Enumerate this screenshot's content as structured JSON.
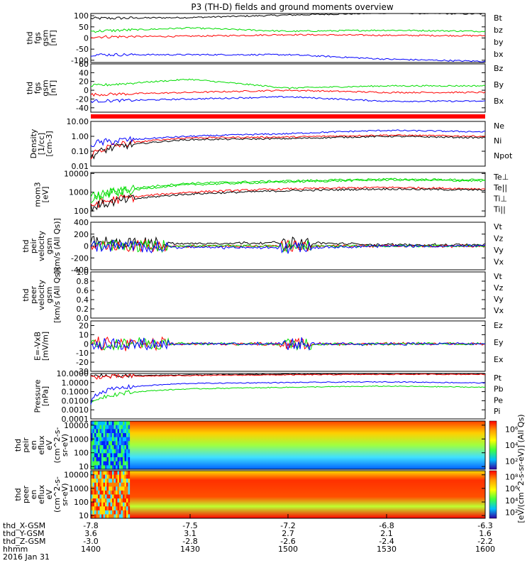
{
  "title": "P3 (TH-D) fields and ground moments overview",
  "colors": {
    "black": "#000000",
    "red": "#ff0000",
    "green": "#00dd00",
    "blue": "#0000ff"
  },
  "panels": [
    {
      "id": "fgs",
      "ylabel": [
        "thd",
        "fgs",
        "gsm",
        "[nT]"
      ],
      "ticks": [
        {
          "v": 100,
          "label": "100"
        },
        {
          "v": 50,
          "label": "50"
        },
        {
          "v": 0,
          "label": "0"
        },
        {
          "v": -50,
          "label": "-50"
        },
        {
          "v": -100,
          "label": "-100"
        }
      ],
      "ylim": [
        -110,
        110
      ],
      "log": false,
      "legend": [
        {
          "label": "Bt",
          "color": "black"
        },
        {
          "label": "bz",
          "color": "red"
        },
        {
          "label": "by",
          "color": "green"
        },
        {
          "label": "bx",
          "color": "blue"
        }
      ]
    },
    {
      "id": "fgs_dsl",
      "ylabel": [
        "thd",
        "fgs",
        "gsm",
        "[nT]"
      ],
      "ticks": [
        {
          "v": 60,
          "label": "60"
        },
        {
          "v": 40,
          "label": "40"
        },
        {
          "v": 20,
          "label": "20"
        },
        {
          "v": 0,
          "label": "0"
        },
        {
          "v": -20,
          "label": "-20"
        },
        {
          "v": -40,
          "label": "-40"
        }
      ],
      "ylim": [
        -50,
        60
      ],
      "log": false,
      "legend": [
        {
          "label": "Bz",
          "color": "red"
        },
        {
          "label": "By",
          "color": "green"
        },
        {
          "label": "Bx",
          "color": "blue"
        }
      ]
    },
    {
      "id": "density",
      "ylabel": [
        "Density",
        "[1/cc]",
        "[cm-3]"
      ],
      "ticks": [
        {
          "v": 1,
          "label": "10.00"
        },
        {
          "v": 0,
          "label": "1.00"
        },
        {
          "v": -1,
          "label": "0.10"
        },
        {
          "v": -2,
          "label": "0.01"
        }
      ],
      "ylim": [
        -2,
        1
      ],
      "log": true,
      "legend": [
        {
          "label": "Ne",
          "color": "red"
        },
        {
          "label": "Ni",
          "color": "black"
        },
        {
          "label": "Npot",
          "color": "blue"
        }
      ]
    },
    {
      "id": "temp",
      "ylabel": [
        "mom3",
        "[eV]"
      ],
      "ticks": [
        {
          "v": 4,
          "label": "10000"
        },
        {
          "v": 3,
          "label": "1000"
        },
        {
          "v": 2,
          "label": "100"
        }
      ],
      "ylim": [
        1.7,
        4.05
      ],
      "log": true,
      "legend": [
        {
          "label": "Te⊥",
          "color": "red"
        },
        {
          "label": "Te||",
          "color": "black"
        },
        {
          "label": "Ti⊥",
          "color": "green"
        },
        {
          "label": "Ti||",
          "color": "green"
        }
      ]
    },
    {
      "id": "peir_vel",
      "ylabel": [
        "thd",
        "peir",
        "velocity",
        "gsm",
        "[km/s (All Qs)]"
      ],
      "ticks": [
        {
          "v": 400,
          "label": "400"
        },
        {
          "v": 200,
          "label": "200"
        },
        {
          "v": 0,
          "label": "0"
        },
        {
          "v": -200,
          "label": "-200"
        },
        {
          "v": -400,
          "label": "-400"
        }
      ],
      "ylim": [
        -400,
        400
      ],
      "log": false,
      "legend": [
        {
          "label": "Vt",
          "color": "black"
        },
        {
          "label": "Vz",
          "color": "red"
        },
        {
          "label": "Vy",
          "color": "green"
        },
        {
          "label": "Vx",
          "color": "blue"
        }
      ]
    },
    {
      "id": "peer_vel",
      "ylabel": [
        "thd",
        "peer",
        "velocity",
        "gsm",
        "[km/s (All Qs)]"
      ],
      "ticks": [
        {
          "v": 1.0,
          "label": "1.0"
        },
        {
          "v": 0.8,
          "label": "0.8"
        },
        {
          "v": 0.6,
          "label": "0.6"
        },
        {
          "v": 0.4,
          "label": "0.4"
        },
        {
          "v": 0.2,
          "label": "0.2"
        },
        {
          "v": 0.0,
          "label": "0.0"
        }
      ],
      "ylim": [
        0,
        1
      ],
      "log": false,
      "legend": [
        {
          "label": "Vt",
          "color": "black"
        },
        {
          "label": "Vz",
          "color": "red"
        },
        {
          "label": "Vy",
          "color": "green"
        },
        {
          "label": "Vx",
          "color": "blue"
        }
      ]
    },
    {
      "id": "efield",
      "ylabel": [
        "E=-VxB",
        "[mV/m]"
      ],
      "ticks": [
        {
          "v": 20,
          "label": "20"
        },
        {
          "v": 10,
          "label": "10"
        },
        {
          "v": 0,
          "label": "0"
        },
        {
          "v": -10,
          "label": "-10"
        },
        {
          "v": -20,
          "label": "-20"
        },
        {
          "v": -30,
          "label": "-30"
        }
      ],
      "ylim": [
        -30,
        25
      ],
      "log": false,
      "legend": [
        {
          "label": "Ez",
          "color": "red"
        },
        {
          "label": "Ey",
          "color": "green"
        },
        {
          "label": "Ex",
          "color": "blue"
        }
      ]
    },
    {
      "id": "pressure",
      "ylabel": [
        "Pressure",
        "[nPa]"
      ],
      "ticks": [
        {
          "v": 1,
          "label": "10.0000"
        },
        {
          "v": 0,
          "label": "1.0000"
        },
        {
          "v": -1,
          "label": "0.1000"
        },
        {
          "v": -2,
          "label": "0.0100"
        },
        {
          "v": -3,
          "label": "0.0010"
        },
        {
          "v": -4,
          "label": "0.0001"
        }
      ],
      "ylim": [
        -4,
        1
      ],
      "log": true,
      "legend": [
        {
          "label": "Pt",
          "color": "black"
        },
        {
          "label": "Pb",
          "color": "red"
        },
        {
          "label": "Pe",
          "color": "green"
        },
        {
          "label": "Pi",
          "color": "blue"
        }
      ]
    },
    {
      "id": "peir_spec",
      "ylabel": [
        "thd",
        "peir",
        "en",
        "eflux",
        "eV",
        "(cm^2-s-",
        "sr-eV)"
      ],
      "ticks": [
        {
          "v": 4,
          "label": "10000"
        },
        {
          "v": 3,
          "label": "1000"
        },
        {
          "v": 2,
          "label": "100"
        },
        {
          "v": 1,
          "label": "10"
        }
      ],
      "ylim": [
        0.8,
        4.3
      ],
      "log": true,
      "spectrogram": true,
      "colorbar_ticks": [
        {
          "v": 6,
          "label": "10⁶"
        },
        {
          "v": 4,
          "label": "10⁴"
        },
        {
          "v": 2,
          "label": "10²"
        }
      ]
    },
    {
      "id": "peer_spec",
      "ylabel": [
        "thd",
        "peer",
        "en",
        "eflux",
        "eV",
        "(cm^2-s-",
        "sr-eV)"
      ],
      "ticks": [
        {
          "v": 4,
          "label": "10000"
        },
        {
          "v": 3,
          "label": "1000"
        },
        {
          "v": 2,
          "label": "100"
        },
        {
          "v": 1,
          "label": "10"
        }
      ],
      "ylim": [
        0.8,
        4.3
      ],
      "log": true,
      "spectrogram": true,
      "colorbar_ticks": [
        {
          "v": 8,
          "label": "10⁸"
        },
        {
          "v": 6,
          "label": "10⁶"
        },
        {
          "v": 4,
          "label": "10⁴"
        },
        {
          "v": 2,
          "label": "10²"
        }
      ]
    }
  ],
  "colorbar_label": "[eV/(cm^2-s-sr-eV)] (All Qs)",
  "xaxis": {
    "rows": [
      {
        "label": "thd_X-GSM",
        "values": [
          "-7.8",
          "-7.5",
          "-7.2",
          "-6.8",
          "-6.3"
        ]
      },
      {
        "label": "thd_Y-GSM",
        "values": [
          "3.6",
          "3.1",
          "2.7",
          "2.1",
          "1.6"
        ]
      },
      {
        "label": "thd_Z-GSM",
        "values": [
          "-3.0",
          "-2.8",
          "-2.6",
          "-2.4",
          "-2.2"
        ]
      },
      {
        "label": "hhmm",
        "values": [
          "1400",
          "1430",
          "1500",
          "1530",
          "1600"
        ]
      }
    ],
    "date": "2016 Jan 31"
  },
  "chart_data": {
    "type": "line",
    "title": "P3 (TH-D) fields and ground moments overview",
    "x": {
      "unit": "hhmm",
      "ticks": [
        "1400",
        "1430",
        "1500",
        "1530",
        "1600"
      ],
      "range": [
        "1400",
        "1600"
      ]
    },
    "panels": [
      {
        "name": "thd fgs gsm [nT]",
        "series": [
          {
            "name": "Bt",
            "approx": {
              "x": [
                "1400",
                "1430",
                "1500",
                "1530",
                "1600"
              ],
              "y": [
                88,
                92,
                103,
                112,
                108
              ]
            }
          },
          {
            "name": "bz",
            "approx": {
              "x": [
                "1400",
                "1430",
                "1500",
                "1530",
                "1600"
              ],
              "y": [
                5,
                8,
                15,
                12,
                10
              ]
            }
          },
          {
            "name": "by",
            "approx": {
              "x": [
                "1400",
                "1430",
                "1500",
                "1530",
                "1600"
              ],
              "y": [
                30,
                45,
                30,
                35,
                30
              ]
            }
          },
          {
            "name": "bx",
            "approx": {
              "x": [
                "1400",
                "1430",
                "1500",
                "1530",
                "1600"
              ],
              "y": [
                -75,
                -75,
                -75,
                -95,
                -105
              ]
            }
          }
        ]
      },
      {
        "name": "thd fgs gsm [nT] (2)",
        "series": [
          {
            "name": "Bz",
            "approx": {
              "x": [
                "1400",
                "1430",
                "1500",
                "1530",
                "1600"
              ],
              "y": [
                -10,
                -5,
                0,
                -5,
                -5
              ]
            }
          },
          {
            "name": "By",
            "approx": {
              "x": [
                "1400",
                "1430",
                "1500",
                "1530",
                "1600"
              ],
              "y": [
                10,
                25,
                5,
                10,
                10
              ]
            }
          },
          {
            "name": "Bx",
            "approx": {
              "x": [
                "1400",
                "1430",
                "1500",
                "1530",
                "1600"
              ],
              "y": [
                -25,
                -20,
                -15,
                -25,
                -25
              ]
            }
          }
        ]
      },
      {
        "name": "Density [cm-3]",
        "series": [
          {
            "name": "Ne",
            "approx": {
              "x": [
                "1400",
                "1430",
                "1500",
                "1530",
                "1600"
              ],
              "y": [
                0.05,
                0.8,
                0.9,
                1.2,
                1.0
              ]
            }
          },
          {
            "name": "Ni",
            "approx": {
              "x": [
                "1400",
                "1430",
                "1500",
                "1530",
                "1600"
              ],
              "y": [
                0.04,
                0.6,
                0.7,
                1.0,
                0.8
              ]
            }
          },
          {
            "name": "Npot",
            "approx": {
              "x": [
                "1400",
                "1430",
                "1500",
                "1530",
                "1600"
              ],
              "y": [
                0.3,
                1.0,
                1.5,
                2.5,
                2.0
              ]
            }
          }
        ]
      },
      {
        "name": "mom3 [eV]",
        "series": [
          {
            "name": "Te⊥",
            "approx": {
              "x": [
                "1400",
                "1430",
                "1500",
                "1530",
                "1600"
              ],
              "y": [
                200,
                1000,
                1500,
                1800,
                1500
              ]
            }
          },
          {
            "name": "Te||",
            "approx": {
              "x": [
                "1400",
                "1430",
                "1500",
                "1530",
                "1600"
              ],
              "y": [
                150,
                800,
                1200,
                1500,
                1300
              ]
            }
          },
          {
            "name": "Ti⊥",
            "approx": {
              "x": [
                "1400",
                "1430",
                "1500",
                "1530",
                "1600"
              ],
              "y": [
                500,
                3000,
                4000,
                5000,
                4500
              ]
            }
          },
          {
            "name": "Ti||",
            "approx": {
              "x": [
                "1400",
                "1430",
                "1500",
                "1530",
                "1600"
              ],
              "y": [
                400,
                2500,
                3500,
                4500,
                4000
              ]
            }
          }
        ]
      },
      {
        "name": "thd peir velocity gsm",
        "series": [
          {
            "name": "Vt",
            "approx": {
              "x": [
                "1400",
                "1430",
                "1500",
                "1530",
                "1600"
              ],
              "y": [
                60,
                40,
                60,
                20,
                20
              ]
            }
          },
          {
            "name": "Vz",
            "approx": {
              "x": [
                "1400",
                "1430",
                "1500",
                "1530",
                "1600"
              ],
              "y": [
                0,
                0,
                0,
                0,
                0
              ]
            }
          },
          {
            "name": "Vy",
            "approx": {
              "x": [
                "1400",
                "1430",
                "1500",
                "1530",
                "1600"
              ],
              "y": [
                0,
                0,
                0,
                0,
                0
              ]
            }
          },
          {
            "name": "Vx",
            "approx": {
              "x": [
                "1400",
                "1430",
                "1500",
                "1530",
                "1600"
              ],
              "y": [
                0,
                -20,
                -30,
                0,
                0
              ]
            }
          }
        ]
      },
      {
        "name": "E=-VxB [mV/m]",
        "series": [
          {
            "name": "Ez",
            "approx": {
              "x": [
                "1400",
                "1430",
                "1500",
                "1530",
                "1600"
              ],
              "y": [
                0,
                0,
                0,
                0,
                0
              ]
            }
          },
          {
            "name": "Ey",
            "approx": {
              "x": [
                "1400",
                "1430",
                "1500",
                "1530",
                "1600"
              ],
              "y": [
                0,
                0,
                0,
                0,
                0
              ]
            }
          },
          {
            "name": "Ex",
            "approx": {
              "x": [
                "1400",
                "1430",
                "1500",
                "1530",
                "1600"
              ],
              "y": [
                0,
                0,
                0,
                0,
                0
              ]
            }
          }
        ]
      },
      {
        "name": "Pressure [nPa]",
        "series": [
          {
            "name": "Pt",
            "approx": {
              "x": [
                "1400",
                "1430",
                "1500",
                "1530",
                "1600"
              ],
              "y": [
                5,
                7,
                8,
                9,
                9
              ]
            }
          },
          {
            "name": "Pb",
            "approx": {
              "x": [
                "1400",
                "1430",
                "1500",
                "1530",
                "1600"
              ],
              "y": [
                4,
                6,
                7,
                8,
                8
              ]
            }
          },
          {
            "name": "Pe",
            "approx": {
              "x": [
                "1400",
                "1430",
                "1500",
                "1530",
                "1600"
              ],
              "y": [
                0.003,
                0.2,
                0.3,
                0.4,
                0.3
              ]
            }
          },
          {
            "name": "Pi",
            "approx": {
              "x": [
                "1400",
                "1430",
                "1500",
                "1530",
                "1600"
              ],
              "y": [
                0.005,
                0.8,
                1.0,
                1.2,
                0.9
              ]
            }
          }
        ]
      }
    ]
  }
}
